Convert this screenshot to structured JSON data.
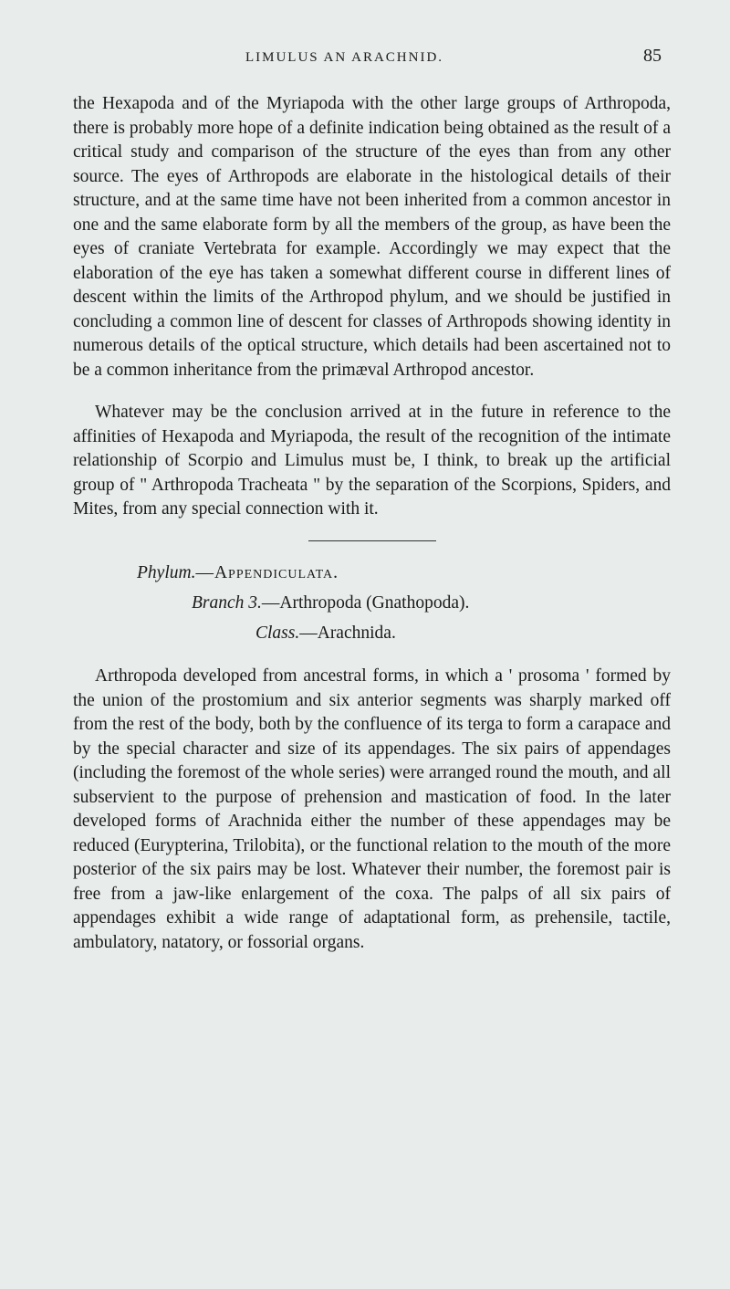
{
  "header": {
    "running_head": "LIMULUS AN ARACHNID.",
    "page_number": "85"
  },
  "paragraphs": {
    "p1": "the Hexapoda and of the Myriapoda with the other large groups of Arthropoda, there is probably more hope of a definite indication being obtained as the result of a critical study and comparison of the structure of the eyes than from any other source. The eyes of Arthropods are elaborate in the histological details of their structure, and at the same time have not been inherited from a common ancestor in one and the same elaborate form by all the members of the group, as have been the eyes of craniate Vertebrata for example. Accordingly we may expect that the elaboration of the eye has taken a somewhat different course in different lines of descent within the limits of the Arthropod phylum, and we should be justified in concluding a common line of descent for classes of Arthropods showing identity in numerous details of the optical structure, which details had been ascertained not to be a common inheritance from the primæval Arthropod ancestor.",
    "p2": "Whatever may be the conclusion arrived at in the future in reference to the affinities of Hexapoda and Myriapoda, the result of the recognition of the intimate relationship of Scorpio and Limulus must be, I think, to break up the artificial group of \" Arthropoda Tracheata \" by the separation of the Scorpions, Spiders, and Mites, from any special connection with it.",
    "p3": "Arthropoda developed from ancestral forms, in which a ' prosoma ' formed by the union of the prostomium and six anterior segments was sharply marked off from the rest of the body, both by the confluence of its terga to form a carapace and by the special character and size of its appendages. The six pairs of appendages (including the foremost of the whole series) were arranged round the mouth, and all subservient to the purpose of prehension and mastication of food. In the later developed forms of Arachnida either the number of these appendages may be reduced (Eurypterina, Trilobita), or the functional relation to the mouth of the more posterior of the six pairs may be lost. Whatever their number, the foremost pair is free from a jaw-like enlargement of the coxa. The palps of all six pairs of appendages exhibit a wide range of adaptational form, as prehensile, tactile, ambulatory, natatory, or fossorial organs."
  },
  "taxonomy": {
    "phylum_label": "Phylum.",
    "phylum_value": "—Appendiculata.",
    "branch_label": "Branch 3.",
    "branch_value": "—Arthropoda (Gnathopoda).",
    "class_label": "Class.",
    "class_value": "—Arachnida."
  }
}
